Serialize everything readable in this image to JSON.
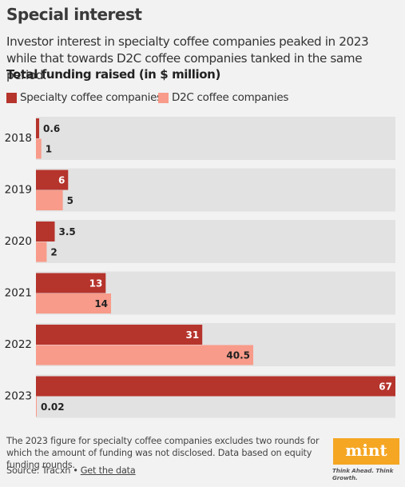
{
  "header": {
    "title": "Special interest",
    "subtitle": "Investor interest in specialty coffee companies peaked in 2023 while that towards D2C coffee companies tanked in the same period.",
    "chart_heading": "Total funding raised (in $ million)"
  },
  "chart_data": {
    "type": "bar",
    "orientation": "horizontal",
    "categories": [
      "2018",
      "2019",
      "2020",
      "2021",
      "2022",
      "2023"
    ],
    "series": [
      {
        "name": "Specialty coffee companies",
        "color": "#b5342c",
        "values": [
          0.6,
          6,
          3.5,
          13,
          31,
          67
        ],
        "labels": [
          "0.6",
          "6",
          "3.5",
          "13",
          "31",
          "67"
        ]
      },
      {
        "name": "D2C coffee companies",
        "color": "#f89b8a",
        "values": [
          1,
          5,
          2,
          14,
          40.5,
          0.02
        ],
        "labels": [
          "1",
          "5",
          "2",
          "14",
          "40.5",
          "0.02"
        ]
      }
    ],
    "xlim": [
      0,
      67
    ],
    "grid": false,
    "legend_position": "top-left"
  },
  "footer": {
    "note": "The 2023 figure for specialty coffee companies excludes two rounds for which the amount of funding was not disclosed. Data based on equity funding rounds.",
    "source": "Source: Tracxn",
    "separator": "•",
    "data_link": "Get the data",
    "logo": "mint",
    "tagline": "Think Ahead. Think Growth."
  }
}
